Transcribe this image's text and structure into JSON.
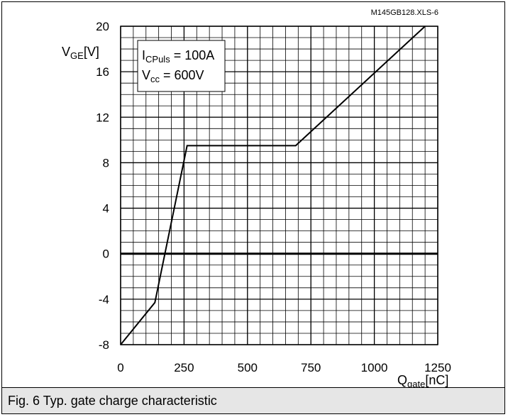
{
  "file_id": "M145GB128.XLS-6",
  "caption": "Fig. 6 Typ. gate charge characteristic",
  "colors": {
    "line": "#000000",
    "grid": "#000000",
    "caption_bg": "#e6e6e6"
  },
  "chart_data": {
    "type": "line",
    "title": "",
    "ylabel": {
      "main": "V",
      "sub": "GE",
      "unit": "[V]"
    },
    "xlabel": {
      "main": "Q",
      "sub": "gate",
      "unit": "[nC]"
    },
    "xlim": [
      0,
      1250
    ],
    "ylim": [
      -8,
      20
    ],
    "x_ticks": [
      0,
      250,
      500,
      750,
      1000,
      1250
    ],
    "y_ticks": [
      -8,
      -4,
      0,
      4,
      8,
      12,
      16,
      20
    ],
    "x_minor_step": 50,
    "y_minor_step": 1,
    "grid": true,
    "zero_line": true,
    "annotation": {
      "line1": {
        "main": "I",
        "sub": "CPuls",
        "rest": " = 100A"
      },
      "line2": {
        "main": "V",
        "sub": "cc",
        "rest": " = 600V"
      }
    },
    "series": [
      {
        "x": [
          0,
          135,
          262,
          690,
          1200
        ],
        "y": [
          -8,
          -4.3,
          9.5,
          9.5,
          20
        ]
      }
    ]
  }
}
